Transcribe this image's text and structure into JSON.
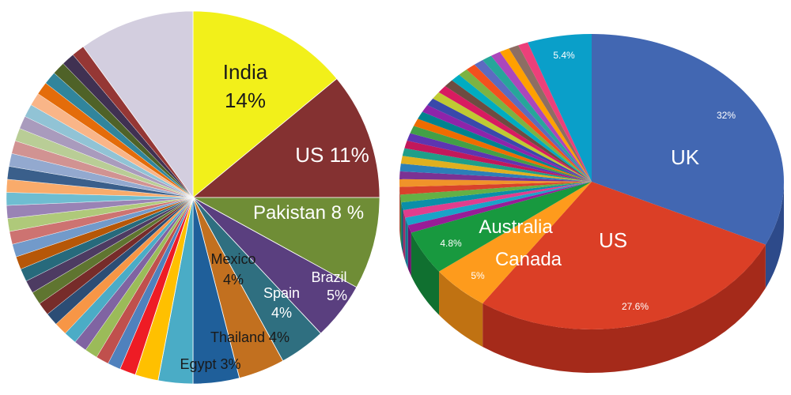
{
  "chart_data": [
    {
      "type": "pie",
      "slices": [
        {
          "label": "India",
          "value_label": "14%",
          "value": 14,
          "color": "#f2f01a",
          "text_color": "#1a1a1a"
        },
        {
          "label": "US",
          "value_label": "11%",
          "value": 11,
          "color": "#843131",
          "text_color": "#ffffff"
        },
        {
          "label": "Pakistan",
          "value_label": "8 %",
          "value": 8,
          "color": "#6f8d36",
          "text_color": "#ffffff"
        },
        {
          "label": "Brazil",
          "value_label": "5%",
          "value": 5,
          "color": "#5a3f7f",
          "text_color": "#ffffff"
        },
        {
          "label": "Spain",
          "value_label": "4%",
          "value": 4,
          "color": "#2f6f80",
          "text_color": "#ffffff"
        },
        {
          "label": "Thailand",
          "value_label": "4%",
          "value": 4,
          "color": "#c2701f",
          "text_color": "#1a1a1a"
        },
        {
          "label": "Mexico",
          "value_label": "4%",
          "value": 4,
          "color": "#1f5f9a",
          "text_color": "#1a1a1a"
        },
        {
          "label": "Egypt",
          "value_label": "3%",
          "value": 3,
          "color": "#4aacc6",
          "text_color": "#1a1a1a"
        },
        {
          "label": "",
          "value_label": "",
          "value": 2,
          "color": "#ffc000",
          "text_color": "#1a1a1a"
        },
        {
          "label": "",
          "value_label": "",
          "value": 1.4,
          "color": "#ee1c25",
          "text_color": "#1a1a1a"
        },
        {
          "label": "",
          "value_label": "",
          "value": 33.6,
          "color": "#8aa8d6",
          "text_color": "#1a1a1a",
          "group": "many small slices"
        },
        {
          "label": "",
          "value_label": "",
          "value": 10,
          "color": "#d3cedf",
          "text_color": "#1a1a1a"
        }
      ],
      "small_slice_colors": [
        "#4f81bd",
        "#c0504d",
        "#9bbb59",
        "#8064a2",
        "#4bacc6",
        "#f79646",
        "#2c4d75",
        "#772c2a",
        "#5f7530",
        "#4d3b62",
        "#276a7c",
        "#b65708",
        "#729aca",
        "#cd7371",
        "#afc97a",
        "#9983b5",
        "#6fbdd1",
        "#f9ab6b",
        "#3a5f8b",
        "#93a9cf",
        "#d19392",
        "#b9cd96",
        "#a99bbd",
        "#91c3d5",
        "#f9b588",
        "#e46c0a",
        "#31859c",
        "#4f6228",
        "#403152",
        "#953735"
      ]
    },
    {
      "type": "pie",
      "style": "3d",
      "slices": [
        {
          "label": "UK",
          "value_label": "32%",
          "value": 32,
          "color": "#4267b2",
          "side_color": "#2d4a8a"
        },
        {
          "label": "US",
          "value_label": "27.6%",
          "value": 27.6,
          "color": "#db3f26",
          "side_color": "#a52a1a"
        },
        {
          "label": "Canada",
          "value_label": "5%",
          "value": 5,
          "color": "#fe9b1c",
          "side_color": "#c07212"
        },
        {
          "label": "Australia",
          "value_label": "4.8%",
          "value": 4.8,
          "color": "#18993f",
          "side_color": "#107030"
        },
        {
          "label": "",
          "value_label": "",
          "value": 25.2,
          "color": "#8a3aa0",
          "side_color": "#6a2a7a",
          "group": "many small slices"
        },
        {
          "label": "",
          "value_label": "5.4%",
          "value": 5.4,
          "color": "#0a9fc9",
          "side_color": "#087a9a"
        }
      ],
      "small_slice_colors": [
        "#981d97",
        "#1aa3c8",
        "#e03e8e",
        "#0a8fa8",
        "#64b045",
        "#d8422b",
        "#f0932a",
        "#7b3294",
        "#2c7fb8",
        "#e0b020",
        "#1f9e89",
        "#c2185b",
        "#5e35b1",
        "#43a047",
        "#ef6c00",
        "#00838f",
        "#8e24aa",
        "#3949ab",
        "#c0ca33",
        "#d81b60",
        "#6d4c41",
        "#00acc1",
        "#7cb342",
        "#f4511e",
        "#5c6bc0",
        "#26a69a",
        "#ab47bc",
        "#ffa000",
        "#8d6e63",
        "#ec407a"
      ]
    }
  ]
}
